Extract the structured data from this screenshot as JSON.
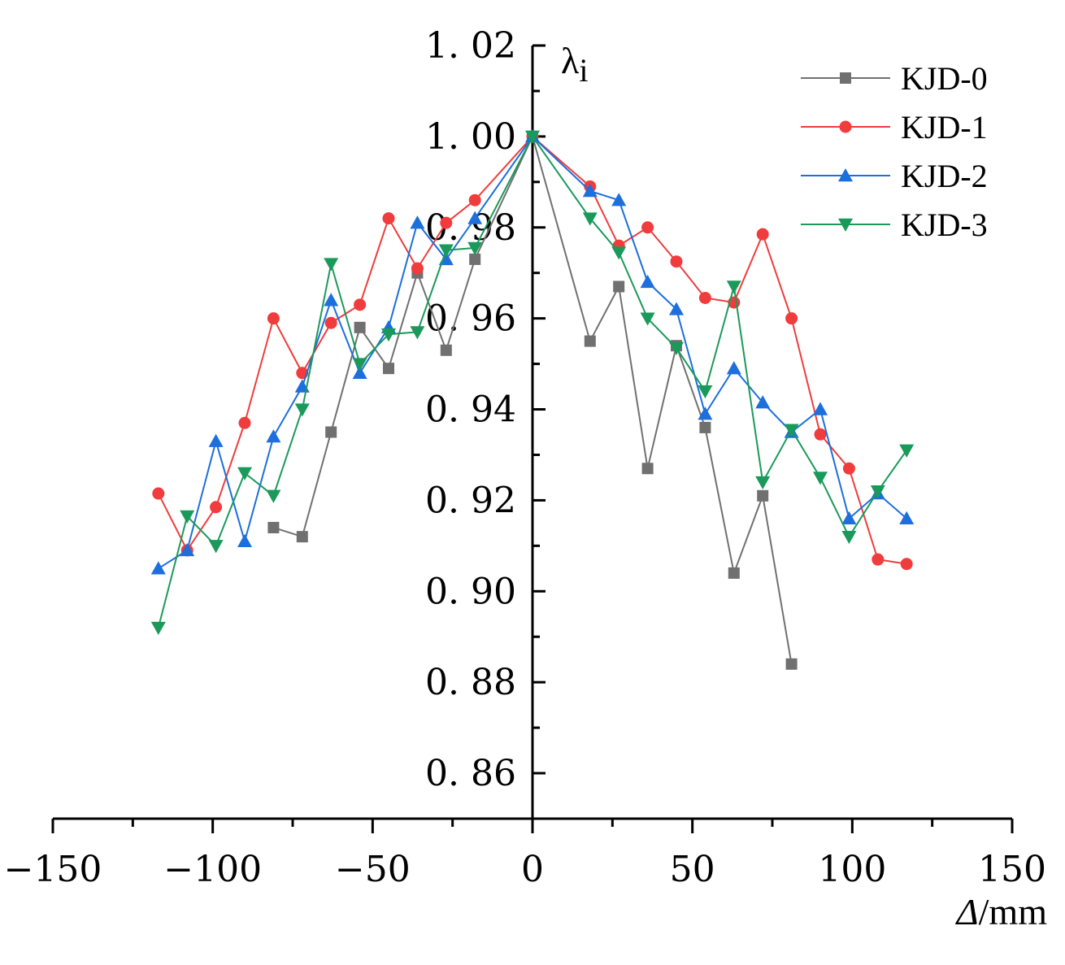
{
  "chart_data": {
    "type": "line",
    "title": "",
    "xlabel": "Δ/mm",
    "ylabel": "λi",
    "xlim": [
      -150,
      150
    ],
    "ylim": [
      0.85,
      1.02
    ],
    "x_ticks": [
      -150,
      -100,
      -50,
      0,
      50,
      100,
      150
    ],
    "x_tick_labels": [
      "−150",
      "−100",
      "−50",
      "0",
      "50",
      "100",
      "150"
    ],
    "y_ticks": [
      0.86,
      0.88,
      0.9,
      0.92,
      0.94,
      0.96,
      0.98,
      1.0,
      1.02
    ],
    "y_tick_labels": [
      "0. 86",
      "0. 88",
      "0. 90",
      "0. 92",
      "0. 94",
      "0. 96",
      "0. 98",
      "1. 00",
      "1. 02"
    ],
    "grid": false,
    "legend_position": "top-right",
    "series": [
      {
        "name": "KJD-0",
        "color": "#707070",
        "marker": "square",
        "x": [
          -81,
          -72,
          -63,
          -54,
          -45,
          -36,
          -27,
          -18,
          0,
          18,
          27,
          36,
          45,
          54,
          63,
          72,
          81
        ],
        "y": [
          0.914,
          0.912,
          0.935,
          0.958,
          0.949,
          0.97,
          0.953,
          0.973,
          1.0,
          0.955,
          0.967,
          0.927,
          0.954,
          0.936,
          0.904,
          0.921,
          0.884
        ]
      },
      {
        "name": "KJD-1",
        "color": "#f03c3c",
        "marker": "circle",
        "x": [
          -117,
          -108,
          -99,
          -90,
          -81,
          -72,
          -63,
          -54,
          -45,
          -36,
          -27,
          -18,
          0,
          18,
          27,
          36,
          45,
          54,
          63,
          72,
          81,
          90,
          99,
          108,
          117
        ],
        "y": [
          0.9215,
          0.909,
          0.9185,
          0.937,
          0.96,
          0.948,
          0.959,
          0.963,
          0.982,
          0.971,
          0.981,
          0.986,
          1.0,
          0.989,
          0.976,
          0.98,
          0.9725,
          0.9645,
          0.9635,
          0.9785,
          0.96,
          0.9345,
          0.927,
          0.907,
          0.906
        ]
      },
      {
        "name": "KJD-2",
        "color": "#1c6fdc",
        "marker": "triangle-up",
        "x": [
          -117,
          -108,
          -99,
          -90,
          -81,
          -72,
          -63,
          -54,
          -45,
          -36,
          -27,
          -18,
          0,
          18,
          27,
          36,
          45,
          54,
          63,
          72,
          81,
          90,
          99,
          108,
          117
        ],
        "y": [
          0.905,
          0.909,
          0.933,
          0.911,
          0.934,
          0.945,
          0.964,
          0.948,
          0.958,
          0.981,
          0.973,
          0.982,
          1.0,
          0.988,
          0.986,
          0.968,
          0.962,
          0.939,
          0.949,
          0.9415,
          0.935,
          0.94,
          0.916,
          0.9215,
          0.916
        ]
      },
      {
        "name": "KJD-3",
        "color": "#1a9a5a",
        "marker": "triangle-down",
        "x": [
          -117,
          -108,
          -99,
          -90,
          -81,
          -72,
          -63,
          -54,
          -45,
          -36,
          -27,
          -18,
          0,
          18,
          27,
          36,
          45,
          54,
          63,
          72,
          81,
          90,
          99,
          108,
          117
        ],
        "y": [
          0.892,
          0.9165,
          0.91,
          0.926,
          0.921,
          0.94,
          0.972,
          0.95,
          0.9565,
          0.957,
          0.975,
          0.9755,
          1.0,
          0.982,
          0.9745,
          0.96,
          0.9535,
          0.944,
          0.967,
          0.924,
          0.9355,
          0.925,
          0.912,
          0.922,
          0.931
        ]
      }
    ]
  }
}
